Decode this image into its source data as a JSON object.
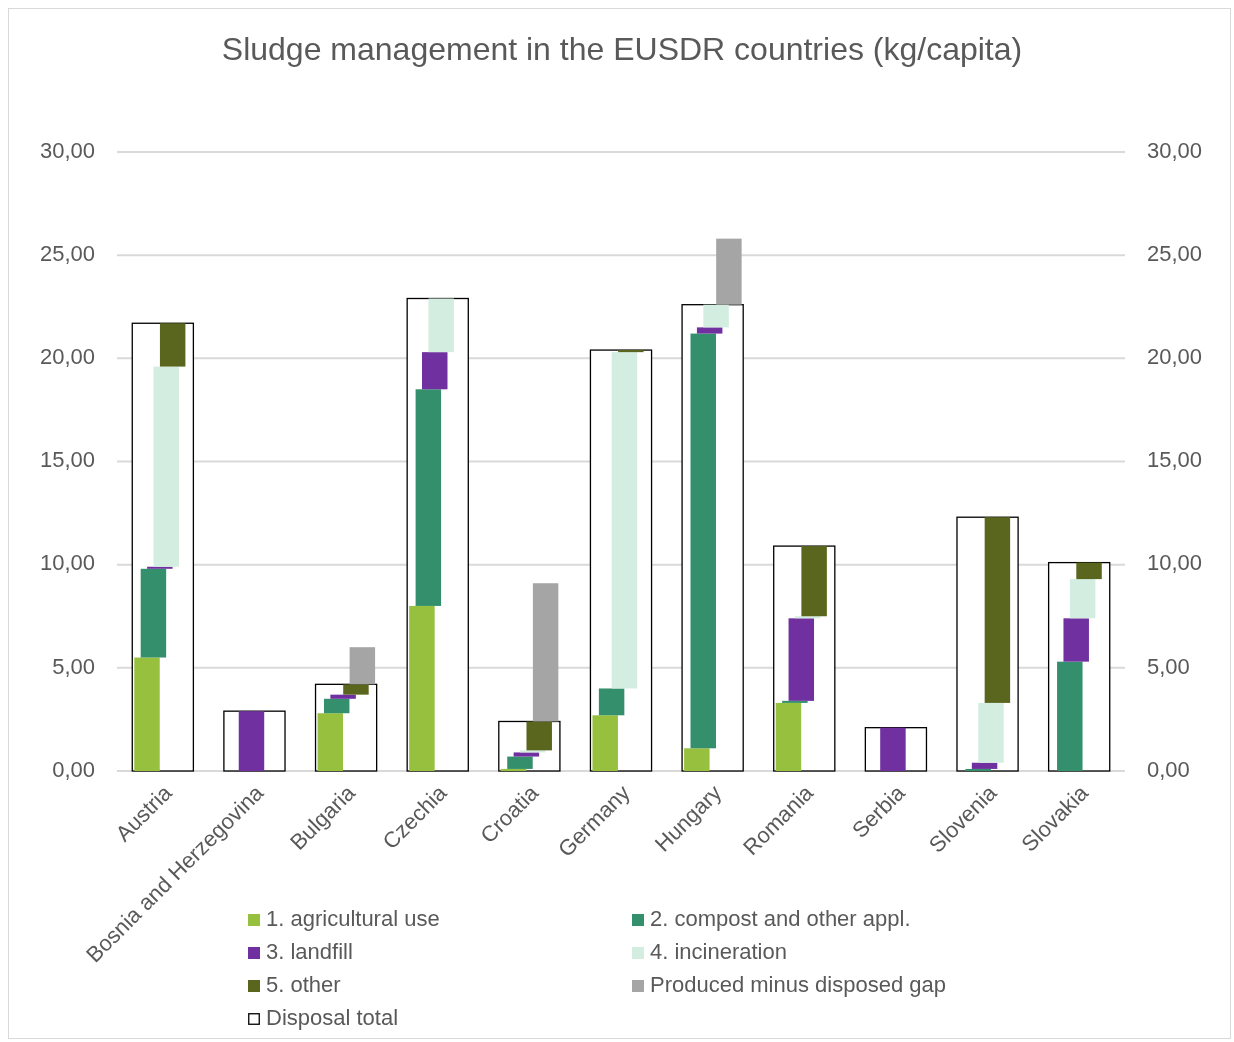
{
  "chart_data": {
    "type": "bar",
    "title": "Sludge management in the EUSDR countries (kg/capita)",
    "categories": [
      "Austria",
      "Bosnia and Herzegovina",
      "Bulgaria",
      "Czechia",
      "Croatia",
      "Germany",
      "Hungary",
      "Romania",
      "Serbia",
      "Slovenia",
      "Slovakia"
    ],
    "series": [
      {
        "name": "1. agricultural use",
        "color": "#96c03e",
        "values": [
          5.5,
          null,
          2.8,
          8.0,
          0.1,
          2.7,
          1.1,
          3.3,
          null,
          null,
          null
        ]
      },
      {
        "name": "2. compost and other appl.",
        "color": "#34906c",
        "values": [
          4.3,
          null,
          0.7,
          10.5,
          0.6,
          1.3,
          20.1,
          0.1,
          null,
          0.1,
          5.3
        ]
      },
      {
        "name": "3. landfill",
        "color": "#7030a0",
        "values": [
          0.1,
          2.9,
          0.2,
          1.8,
          0.2,
          null,
          0.3,
          4.0,
          2.1,
          0.3,
          2.1
        ]
      },
      {
        "name": "4. incineration",
        "color": "#d3eee1",
        "values": [
          9.7,
          null,
          null,
          2.6,
          0.1,
          16.3,
          1.1,
          0.1,
          null,
          2.9,
          1.9
        ]
      },
      {
        "name": "5. other",
        "color": "#5a661e",
        "values": [
          2.1,
          null,
          0.5,
          null,
          1.4,
          0.1,
          null,
          3.4,
          null,
          9.0,
          0.8
        ]
      },
      {
        "name": "Produced minus disposed gap",
        "color": "#a5a5a5",
        "values": [
          null,
          null,
          1.8,
          null,
          6.7,
          null,
          3.2,
          null,
          null,
          null,
          null
        ]
      },
      {
        "name": "Disposal total",
        "color": "#ffffff",
        "axis": "y2",
        "values": [
          21.7,
          2.9,
          4.2,
          22.9,
          2.4,
          20.4,
          22.6,
          10.9,
          2.1,
          12.3,
          10.1
        ]
      }
    ],
    "stacked": true,
    "ylim": [
      0,
      30
    ],
    "yticks": [
      {
        "value": 0,
        "label": "0,00"
      },
      {
        "value": 5,
        "label": "5,00"
      },
      {
        "value": 10,
        "label": "10,00"
      },
      {
        "value": 15,
        "label": "15,00"
      },
      {
        "value": 20,
        "label": "20,00"
      },
      {
        "value": 25,
        "label": "25,00"
      },
      {
        "value": 30,
        "label": "30,00"
      }
    ],
    "y2lim": [
      0,
      30
    ],
    "y2ticks": [
      {
        "value": 0,
        "label": "0,00"
      },
      {
        "value": 5,
        "label": "5,00"
      },
      {
        "value": 10,
        "label": "10,00"
      },
      {
        "value": 15,
        "label": "15,00"
      },
      {
        "value": 20,
        "label": "20,00"
      },
      {
        "value": 25,
        "label": "25,00"
      },
      {
        "value": 30,
        "label": "30,00"
      }
    ],
    "grid": "y",
    "legend": "bottom"
  }
}
